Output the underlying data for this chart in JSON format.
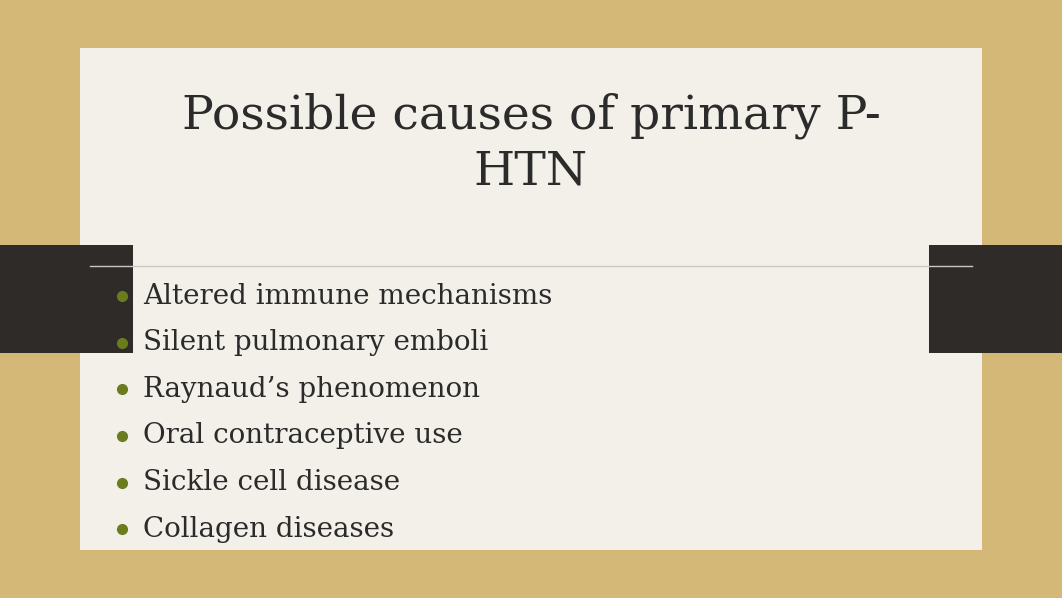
{
  "title": "Possible causes of primary P-\nHTN",
  "title_fontsize": 34,
  "title_color": "#2b2b2b",
  "title_font": "serif",
  "bullet_items": [
    "Altered immune mechanisms",
    "Silent pulmonary emboli",
    "Raynaud’s phenomenon",
    "Oral contraceptive use",
    "Sickle cell disease",
    "Collagen diseases"
  ],
  "bullet_fontsize": 20,
  "bullet_color": "#2b2b2b",
  "bullet_dot_color": "#6b7c1e",
  "bullet_font": "serif",
  "bg_outer_color": "#d4b878",
  "bg_inner_color": "#f2f0e8",
  "separator_color": "#c8c8c8",
  "dark_block_color": "#2e2b28",
  "fig_width": 10.62,
  "fig_height": 5.98,
  "dpi": 100
}
